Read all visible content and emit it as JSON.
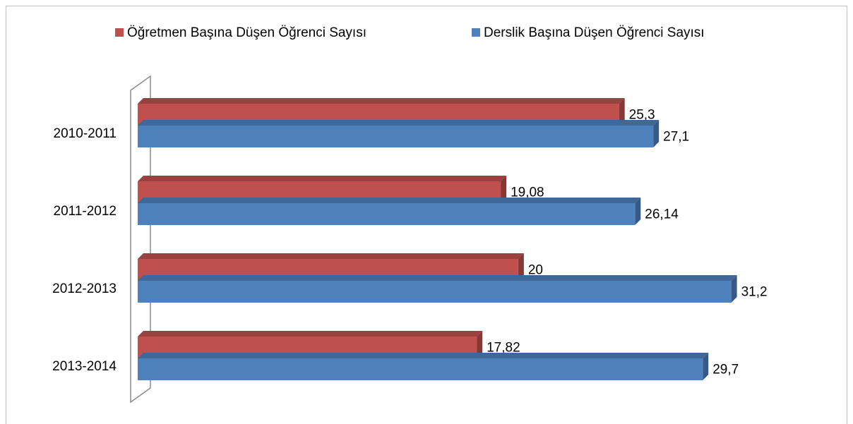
{
  "chart_data": {
    "type": "bar",
    "orientation": "horizontal",
    "legend": "top",
    "categories": [
      "2010-2011",
      "2011-2012",
      "2012-2013",
      "2013-2014"
    ],
    "series": [
      {
        "name": "Öğretmen Başına Düşen Öğrenci Sayısı",
        "color": "#c0504d",
        "values": [
          25.3,
          19.08,
          20,
          17.82
        ],
        "value_labels": [
          "25,3",
          "19,08",
          "20",
          "17,82"
        ]
      },
      {
        "name": "Derslik Başına Düşen Öğrenci Sayısı",
        "color": "#4f81bd",
        "values": [
          27.1,
          26.14,
          31.2,
          29.7
        ],
        "value_labels": [
          "27,1",
          "26,14",
          "31,2",
          "29,7"
        ]
      }
    ],
    "xlim": [
      0,
      35
    ]
  }
}
